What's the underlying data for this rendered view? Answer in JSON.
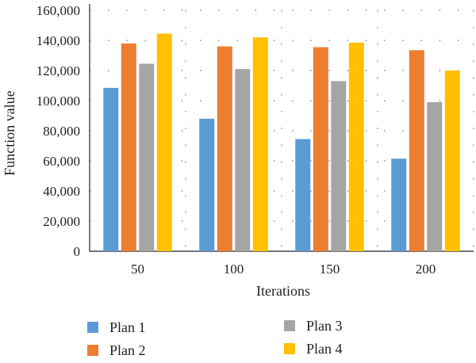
{
  "chart_data": {
    "type": "bar",
    "title": "",
    "xlabel": "Iterations",
    "ylabel": "Function value",
    "categories": [
      "50",
      "100",
      "150",
      "200"
    ],
    "series": [
      {
        "name": "Plan 1",
        "color": "#5b9bd5",
        "values": [
          108500,
          88000,
          74500,
          61500
        ]
      },
      {
        "name": "Plan 2",
        "color": "#ed7d31",
        "values": [
          138000,
          136000,
          135500,
          133500
        ]
      },
      {
        "name": "Plan 3",
        "color": "#a5a5a5",
        "values": [
          124500,
          121000,
          113000,
          99000
        ]
      },
      {
        "name": "Plan 4",
        "color": "#ffc000",
        "values": [
          144500,
          142000,
          138500,
          120000
        ]
      }
    ],
    "ylim": [
      0,
      160000
    ],
    "yticks": [
      0,
      20000,
      40000,
      60000,
      80000,
      100000,
      120000,
      140000,
      160000
    ],
    "ytick_labels": [
      "0",
      "20,000",
      "40,000",
      "60,000",
      "80,000",
      "100,000",
      "120,000",
      "140,000",
      "160,000"
    ],
    "grid": "dotted-horizontal-and-vertical",
    "legend_position": "bottom"
  }
}
